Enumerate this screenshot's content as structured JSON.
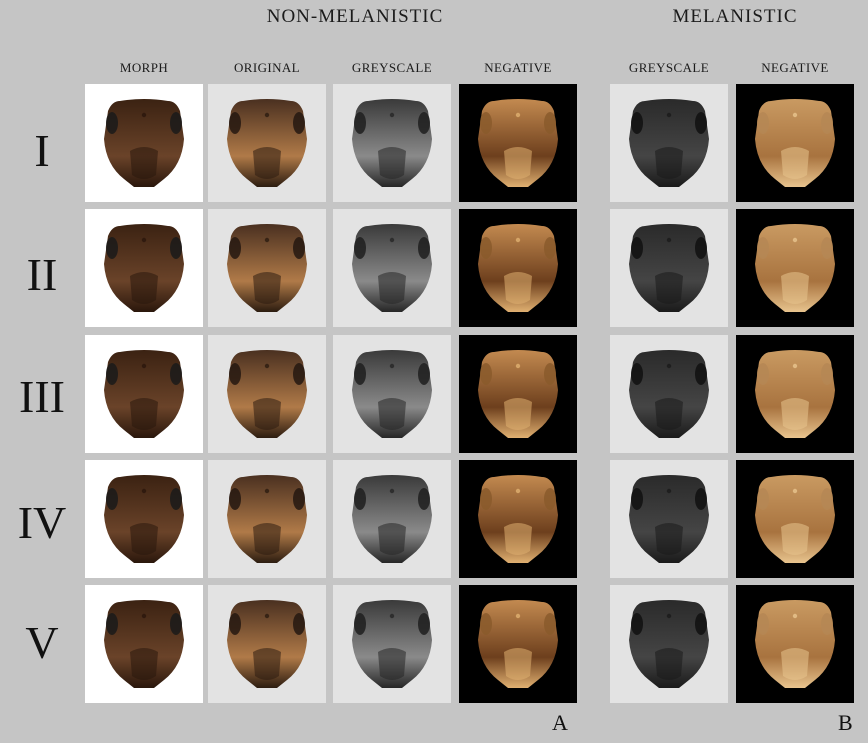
{
  "figure": {
    "groups": [
      {
        "title": "NON-MELANISTIC",
        "columns": [
          "MORPH",
          "ORIGINAL",
          "GREYSCALE",
          "NEGATIVE"
        ],
        "panel": "A"
      },
      {
        "title": "MELANISTIC",
        "columns": [
          "GREYSCALE",
          "NEGATIVE"
        ],
        "panel": "B"
      }
    ],
    "rows": [
      "I",
      "II",
      "III",
      "IV",
      "V"
    ],
    "column_types": [
      "morph",
      "original",
      "greyscale",
      "negative",
      "mel-greyscale",
      "mel-negative"
    ],
    "colors": {
      "page": "#c5c5c5",
      "morph_bg": "#ffffff",
      "light_bg": "#e3e3e3",
      "dark_bg": "#000000"
    }
  }
}
